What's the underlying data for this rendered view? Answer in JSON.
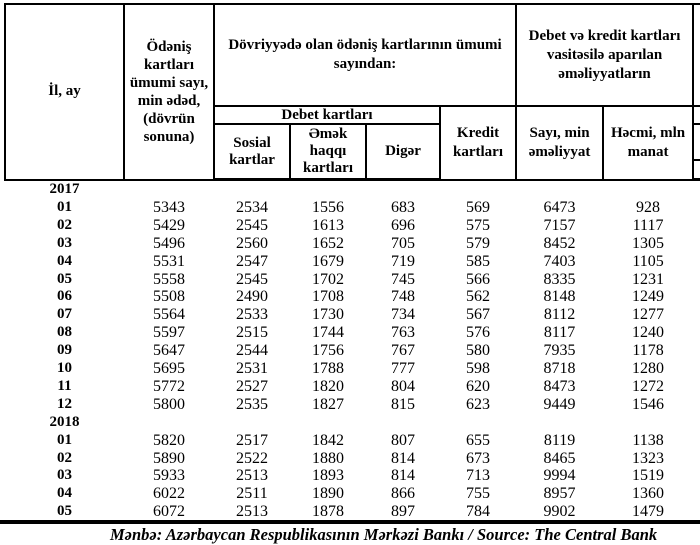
{
  "table": {
    "header": {
      "il_ay": "İl, ay",
      "odenis_kartlari": "Ödəniş\nkartları\nümumi sayı,\nmin ədəd,\n(dövrün\nsonuna)",
      "dovriyyede": "Dövriyyədə olan ödəniş kartlarının ümumi\nsayından:",
      "debet_ve_kredit": "Debet və kredit  kartları\nvasitəsilə aparılan\nəməliyyatların",
      "debet_kartlari": "Debet kartları",
      "sosial_kartlar": "Sosial\nkartlar",
      "emek_haqqi": "Əmək\nhaqqı\nkartları",
      "diger": "Digər",
      "kredit_kartlari": "Kredit\nkartları",
      "sayi_min": "Sayı, min\nəməliyyat",
      "hecmi_mln": "Həcmi, mln\nmanat"
    },
    "sections": [
      {
        "year": "2017",
        "rows": [
          {
            "month": "01",
            "values": [
              5343,
              2534,
              1556,
              683,
              569,
              6473,
              928
            ]
          },
          {
            "month": "02",
            "values": [
              5429,
              2545,
              1613,
              696,
              575,
              7157,
              1117
            ]
          },
          {
            "month": "03",
            "values": [
              5496,
              2560,
              1652,
              705,
              579,
              8452,
              1305
            ]
          },
          {
            "month": "04",
            "values": [
              5531,
              2547,
              1679,
              719,
              585,
              7403,
              1105
            ]
          },
          {
            "month": "05",
            "values": [
              5558,
              2545,
              1702,
              745,
              566,
              8335,
              1231
            ]
          },
          {
            "month": "06",
            "values": [
              5508,
              2490,
              1708,
              748,
              562,
              8148,
              1249
            ]
          },
          {
            "month": "07",
            "values": [
              5564,
              2533,
              1730,
              734,
              567,
              8112,
              1277
            ]
          },
          {
            "month": "08",
            "values": [
              5597,
              2515,
              1744,
              763,
              576,
              8117,
              1240
            ]
          },
          {
            "month": "09",
            "values": [
              5647,
              2544,
              1756,
              767,
              580,
              7935,
              1178
            ]
          },
          {
            "month": "10",
            "values": [
              5695,
              2531,
              1788,
              777,
              598,
              8718,
              1280
            ]
          },
          {
            "month": "11",
            "values": [
              5772,
              2527,
              1820,
              804,
              620,
              8473,
              1272
            ]
          },
          {
            "month": "12",
            "values": [
              5800,
              2535,
              1827,
              815,
              623,
              9449,
              1546
            ]
          }
        ]
      },
      {
        "year": "2018",
        "rows": [
          {
            "month": "01",
            "values": [
              5820,
              2517,
              1842,
              807,
              655,
              8119,
              1138
            ]
          },
          {
            "month": "02",
            "values": [
              5890,
              2522,
              1880,
              814,
              673,
              8465,
              1323
            ]
          },
          {
            "month": "03",
            "values": [
              5933,
              2513,
              1893,
              814,
              713,
              9994,
              1519
            ]
          },
          {
            "month": "04",
            "values": [
              6022,
              2511,
              1890,
              866,
              755,
              8957,
              1360
            ]
          },
          {
            "month": "05",
            "values": [
              6072,
              2513,
              1878,
              897,
              784,
              9902,
              1479
            ]
          }
        ]
      }
    ],
    "footer": "Mənbə: Azərbaycan Respublikasının Mərkəzi Bankı / Source: The Central Bank"
  }
}
